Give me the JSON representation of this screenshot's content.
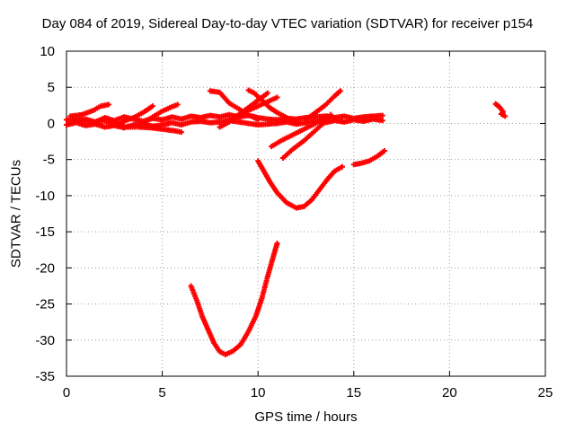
{
  "chart_data": {
    "type": "scatter",
    "title": "Day 084 of 2019, Sidereal Day-to-day VTEC variation (SDTVAR) for receiver p154",
    "xlabel": "GPS time / hours",
    "ylabel": "SDTVAR / TECUs",
    "xlim": [
      0,
      25
    ],
    "ylim": [
      -35,
      10
    ],
    "xticks": [
      0,
      5,
      10,
      15,
      20,
      25
    ],
    "yticks": [
      -35,
      -30,
      -25,
      -20,
      -15,
      -10,
      -5,
      0,
      5,
      10
    ],
    "grid": true,
    "legend": "none",
    "color": "#ff0000",
    "series": [
      {
        "points": [
          [
            0,
            0.5
          ],
          [
            0.5,
            0.3
          ],
          [
            1,
            0.6
          ],
          [
            1.5,
            0.2
          ],
          [
            2,
            0.8
          ],
          [
            2.5,
            0.4
          ],
          [
            3,
            0.9
          ],
          [
            3.5,
            0.6
          ],
          [
            4,
            0.3
          ],
          [
            4.5,
            0.7
          ],
          [
            5,
            0.5
          ],
          [
            5.5,
            0.9
          ],
          [
            6,
            0.6
          ],
          [
            6.5,
            1.0
          ],
          [
            7,
            0.8
          ],
          [
            7.5,
            1.1
          ],
          [
            8,
            0.9
          ],
          [
            8.5,
            1.2
          ],
          [
            9,
            0.9
          ],
          [
            9.5,
            1.1
          ],
          [
            10,
            0.8
          ],
          [
            10.5,
            0.6
          ],
          [
            11,
            0.5
          ],
          [
            11.5,
            0.7
          ],
          [
            12,
            0.6
          ],
          [
            12.5,
            0.8
          ],
          [
            13,
            0.9
          ],
          [
            13.5,
            1.0
          ],
          [
            14,
            0.8
          ],
          [
            14.5,
            1.0
          ],
          [
            15,
            0.7
          ],
          [
            15.5,
            0.9
          ],
          [
            16,
            1.0
          ],
          [
            16.5,
            1.1
          ]
        ]
      },
      {
        "points": [
          [
            0,
            -0.2
          ],
          [
            0.5,
            0.1
          ],
          [
            1,
            -0.3
          ],
          [
            1.5,
            -0.1
          ],
          [
            2,
            -0.5
          ],
          [
            2.5,
            -0.3
          ],
          [
            3,
            -0.6
          ],
          [
            3.5,
            -0.2
          ],
          [
            4,
            0.0
          ],
          [
            4.5,
            -0.4
          ],
          [
            5,
            -0.2
          ],
          [
            5.5,
            0.1
          ],
          [
            6,
            -0.2
          ],
          [
            6.5,
            0.2
          ],
          [
            7,
            0.3
          ],
          [
            7.5,
            0.1
          ],
          [
            8,
            0.2
          ],
          [
            8.5,
            0.4
          ],
          [
            9,
            0.2
          ],
          [
            9.5,
            0.0
          ],
          [
            10,
            -0.2
          ],
          [
            10.5,
            -0.1
          ],
          [
            11,
            0.0
          ],
          [
            11.5,
            0.2
          ],
          [
            12,
            -0.1
          ],
          [
            12.5,
            0.1
          ],
          [
            13,
            0.3
          ],
          [
            13.5,
            0.1
          ],
          [
            14,
            0.4
          ],
          [
            14.5,
            0.2
          ],
          [
            15,
            0.5
          ],
          [
            15.5,
            0.3
          ],
          [
            16,
            0.6
          ],
          [
            16.5,
            0.4
          ]
        ]
      },
      {
        "points": [
          [
            0.2,
            1.0
          ],
          [
            0.8,
            1.2
          ],
          [
            1.4,
            1.8
          ],
          [
            1.8,
            2.4
          ],
          [
            2.2,
            2.6
          ]
        ]
      },
      {
        "points": [
          [
            0.3,
            0.8
          ],
          [
            0.8,
            0.4
          ],
          [
            1.3,
            0.2
          ],
          [
            2.0,
            0.3
          ],
          [
            2.5,
            0.0
          ],
          [
            3.0,
            -0.4
          ]
        ]
      },
      {
        "points": [
          [
            2.6,
            -0.2
          ],
          [
            3.0,
            0.3
          ],
          [
            3.5,
            0.8
          ],
          [
            4.0,
            1.5
          ],
          [
            4.5,
            2.4
          ]
        ]
      },
      {
        "points": [
          [
            3.0,
            -0.5
          ],
          [
            3.8,
            -0.5
          ],
          [
            4.4,
            -0.6
          ],
          [
            5.0,
            -0.8
          ],
          [
            5.6,
            -1.0
          ],
          [
            6.0,
            -1.2
          ]
        ]
      },
      {
        "points": [
          [
            4.0,
            0.1
          ],
          [
            4.5,
            0.9
          ],
          [
            5.0,
            1.7
          ],
          [
            5.5,
            2.3
          ],
          [
            5.8,
            2.6
          ]
        ]
      },
      {
        "points": [
          [
            7.5,
            4.5
          ],
          [
            8.0,
            4.3
          ],
          [
            8.5,
            2.8
          ],
          [
            9.0,
            2.0
          ],
          [
            9.5,
            1.2
          ],
          [
            10.0,
            0.5
          ]
        ]
      },
      {
        "points": [
          [
            8.0,
            -0.5
          ],
          [
            8.5,
            0.2
          ],
          [
            9.0,
            1.0
          ],
          [
            9.5,
            1.8
          ],
          [
            10.0,
            2.4
          ],
          [
            10.5,
            3.0
          ],
          [
            11.0,
            3.6
          ]
        ]
      },
      {
        "points": [
          [
            9.5,
            4.6
          ],
          [
            9.8,
            4.2
          ],
          [
            10.2,
            3.2
          ],
          [
            10.6,
            2.2
          ],
          [
            11.0,
            1.5
          ],
          [
            11.5,
            0.8
          ],
          [
            12.0,
            0.2
          ]
        ]
      },
      {
        "points": [
          [
            8.5,
            0.5
          ],
          [
            9.0,
            1.2
          ],
          [
            9.5,
            2.2
          ],
          [
            10.0,
            3.2
          ],
          [
            10.5,
            4.2
          ]
        ]
      },
      {
        "points": [
          [
            12.5,
            0.5
          ],
          [
            13.0,
            1.5
          ],
          [
            13.5,
            2.5
          ],
          [
            14.0,
            3.8
          ],
          [
            14.3,
            4.5
          ]
        ]
      },
      {
        "points": [
          [
            10.7,
            -3.2
          ],
          [
            11.2,
            -2.4
          ],
          [
            11.8,
            -1.6
          ],
          [
            12.4,
            -0.8
          ],
          [
            13.0,
            0.0
          ],
          [
            13.6,
            1.0
          ]
        ]
      },
      {
        "points": [
          [
            11.3,
            -4.8
          ],
          [
            11.8,
            -3.6
          ],
          [
            12.4,
            -2.4
          ],
          [
            12.9,
            -1.2
          ],
          [
            13.4,
            0.0
          ],
          [
            13.8,
            1.2
          ]
        ]
      },
      {
        "points": [
          [
            10.0,
            -5.2
          ],
          [
            10.3,
            -6.6
          ],
          [
            10.6,
            -8.0
          ],
          [
            11.0,
            -9.6
          ],
          [
            11.5,
            -11.0
          ],
          [
            12.0,
            -11.7
          ],
          [
            12.4,
            -11.5
          ],
          [
            12.8,
            -10.6
          ],
          [
            13.2,
            -9.2
          ],
          [
            13.6,
            -7.8
          ],
          [
            14.0,
            -6.6
          ],
          [
            14.4,
            -6.0
          ]
        ]
      },
      {
        "points": [
          [
            15.0,
            -5.7
          ],
          [
            15.4,
            -5.5
          ],
          [
            15.8,
            -5.2
          ],
          [
            16.2,
            -4.6
          ],
          [
            16.6,
            -3.8
          ]
        ]
      },
      {
        "points": [
          [
            22.4,
            2.7
          ],
          [
            22.6,
            2.3
          ],
          [
            22.8,
            1.6
          ],
          [
            22.7,
            1.3
          ],
          [
            22.9,
            1.0
          ]
        ]
      },
      {
        "points": [
          [
            6.5,
            -22.5
          ],
          [
            6.8,
            -24.5
          ],
          [
            7.1,
            -26.8
          ],
          [
            7.4,
            -28.6
          ],
          [
            7.7,
            -30.4
          ],
          [
            8.0,
            -31.6
          ],
          [
            8.3,
            -32.0
          ],
          [
            8.7,
            -31.5
          ],
          [
            9.1,
            -30.6
          ],
          [
            9.5,
            -28.8
          ],
          [
            9.9,
            -26.6
          ],
          [
            10.2,
            -24.2
          ],
          [
            10.5,
            -21.2
          ],
          [
            10.8,
            -18.4
          ],
          [
            11.0,
            -16.6
          ]
        ]
      }
    ]
  }
}
